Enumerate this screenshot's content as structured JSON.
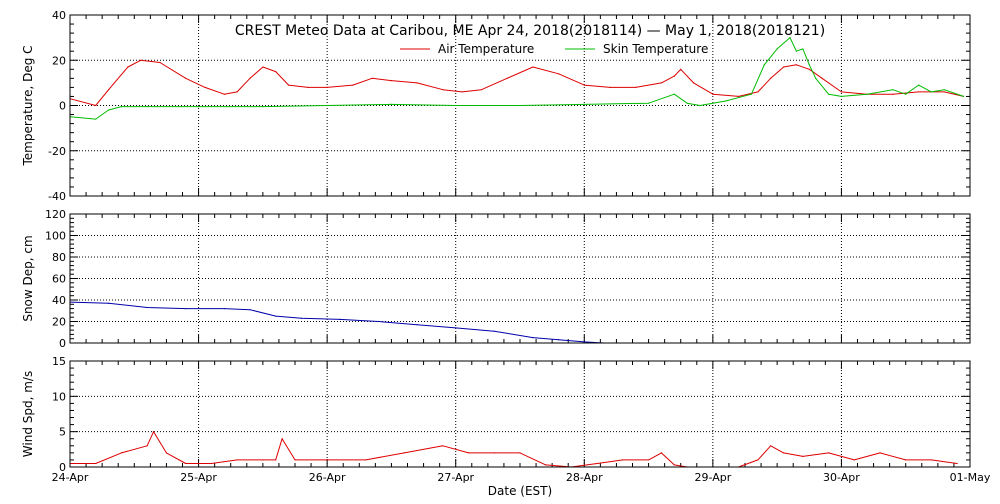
{
  "title": "CREST Meteo Data at Caribou, ME   Apr 24, 2018(2018114) — May  1, 2018(2018121)",
  "xlabel": "Date (EST)",
  "x_tick_labels": [
    "24-Apr",
    "25-Apr",
    "26-Apr",
    "27-Apr",
    "28-Apr",
    "29-Apr",
    "30-Apr",
    "01-May"
  ],
  "colors": {
    "air": "#dd0000",
    "skin": "#00bb00",
    "snow": "#0000aa",
    "wind": "#dd0000",
    "grid": "#000000"
  },
  "chart_data": [
    {
      "type": "line",
      "ylabel": "Temperature, Deg C",
      "ylim": [
        -40,
        40
      ],
      "yticks": [
        -40,
        -20,
        0,
        20,
        40
      ],
      "xlim": [
        0,
        7
      ],
      "x_unit": "days since 24-Apr 00:00",
      "grid": true,
      "legend_position": "top-center",
      "series": [
        {
          "name": "Air Temperature",
          "color": "#dd0000",
          "x": [
            0,
            0.2,
            0.3,
            0.45,
            0.55,
            0.7,
            0.9,
            1.05,
            1.2,
            1.3,
            1.4,
            1.5,
            1.6,
            1.7,
            1.85,
            2.0,
            2.2,
            2.35,
            2.5,
            2.7,
            2.9,
            3.05,
            3.2,
            3.4,
            3.6,
            3.8,
            4.0,
            4.2,
            4.4,
            4.6,
            4.7,
            4.75,
            4.85,
            5.0,
            5.2,
            5.35,
            5.45,
            5.55,
            5.65,
            5.75,
            5.85,
            6.0,
            6.2,
            6.4,
            6.6,
            6.8,
            6.95
          ],
          "values": [
            3,
            0,
            7,
            17,
            20,
            19,
            12,
            8,
            5,
            6,
            12,
            17,
            15,
            9,
            8,
            8,
            9,
            12,
            11,
            10,
            7,
            6,
            7,
            12,
            17,
            14,
            9,
            8,
            8,
            10,
            13,
            16,
            10,
            5,
            4,
            6,
            12,
            17,
            18,
            16,
            12,
            6,
            5,
            5,
            6,
            6,
            4
          ]
        },
        {
          "name": "Skin Temperature",
          "color": "#00bb00",
          "x": [
            0,
            0.2,
            0.3,
            0.4,
            0.6,
            1.0,
            1.5,
            2.0,
            2.5,
            3.0,
            3.5,
            4.0,
            4.5,
            4.7,
            4.8,
            4.9,
            5.1,
            5.3,
            5.4,
            5.5,
            5.6,
            5.65,
            5.7,
            5.75,
            5.8,
            5.9,
            6.0,
            6.2,
            6.4,
            6.5,
            6.6,
            6.7,
            6.8,
            6.95
          ],
          "values": [
            -5,
            -6,
            -2,
            -0.5,
            -0.5,
            -0.5,
            -0.5,
            0,
            0.5,
            0,
            0,
            0.5,
            1,
            5,
            1,
            0,
            2,
            5,
            18,
            25,
            30,
            24,
            25,
            18,
            12,
            5,
            4,
            5,
            7,
            5,
            9,
            6,
            7,
            4
          ]
        }
      ]
    },
    {
      "type": "line",
      "ylabel": "Snow Dep, cm",
      "ylim": [
        0,
        120
      ],
      "yticks": [
        0,
        20,
        40,
        60,
        80,
        100,
        120
      ],
      "xlim": [
        0,
        7
      ],
      "grid": true,
      "series": [
        {
          "name": "",
          "color": "#0000aa",
          "x": [
            0,
            0.3,
            0.6,
            0.9,
            1.2,
            1.4,
            1.6,
            1.8,
            2.1,
            2.4,
            2.7,
            3.0,
            3.3,
            3.6,
            3.8,
            4.0,
            4.15,
            4.25
          ],
          "values": [
            38,
            37,
            33,
            32,
            32,
            31,
            25,
            23,
            22,
            20,
            17,
            14,
            11,
            5,
            3,
            1,
            0,
            0
          ]
        }
      ]
    },
    {
      "type": "line",
      "ylabel": "Wind Spd, m/s",
      "ylim": [
        0,
        15
      ],
      "yticks": [
        0,
        5,
        10,
        15
      ],
      "xlim": [
        0,
        7
      ],
      "grid": true,
      "series": [
        {
          "name": "",
          "color": "#dd0000",
          "x": [
            0,
            0.2,
            0.4,
            0.6,
            0.65,
            0.75,
            0.9,
            1.1,
            1.3,
            1.5,
            1.6,
            1.65,
            1.75,
            2.0,
            2.3,
            2.6,
            2.9,
            3.1,
            3.3,
            3.5,
            3.7,
            3.9,
            4.1,
            4.3,
            4.5,
            4.6,
            4.7,
            4.8,
            5.0,
            5.2,
            5.35,
            5.45,
            5.55,
            5.7,
            5.9,
            6.1,
            6.3,
            6.5,
            6.7,
            6.9
          ],
          "values": [
            0.5,
            0.5,
            2,
            3,
            5,
            2,
            0.5,
            0.5,
            1,
            1,
            1,
            4,
            1,
            1,
            1,
            2,
            3,
            2,
            2,
            2,
            0.3,
            0,
            0.5,
            1,
            1,
            2,
            0.3,
            0,
            0,
            0,
            1,
            3,
            2,
            1.5,
            2,
            1,
            2,
            1,
            1,
            0.5
          ]
        }
      ]
    }
  ]
}
